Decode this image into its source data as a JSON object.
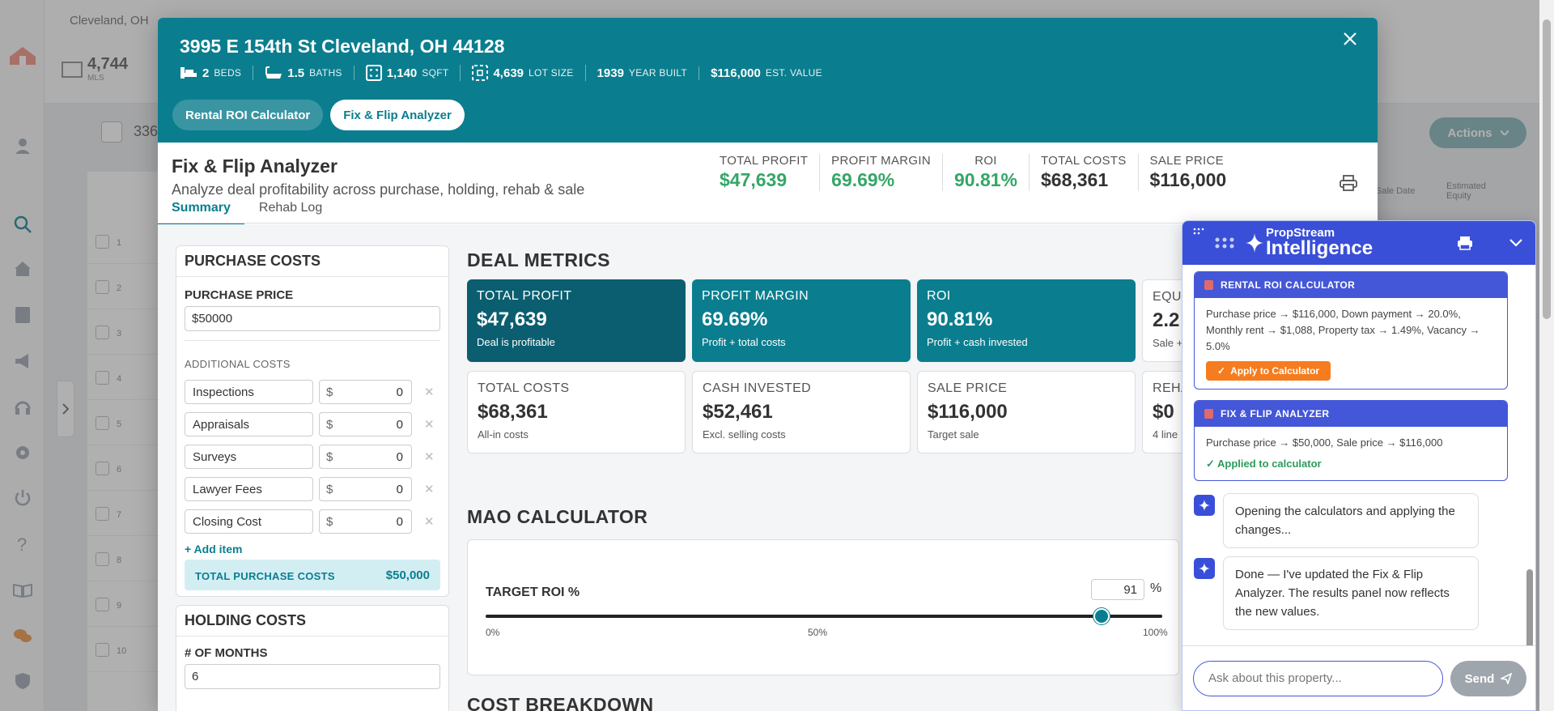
{
  "background": {
    "location": "Cleveland, OH",
    "mls_count": "4,744",
    "mls_label": "MLS",
    "results_count": "336",
    "actions_label": "Actions",
    "columns": [
      "Sale Date",
      "Estimated Equity"
    ],
    "row_numbers": [
      "1",
      "2",
      "3",
      "4",
      "5",
      "6",
      "7",
      "8",
      "9",
      "10"
    ]
  },
  "property": {
    "address": "3995 E 154th St Cleveland, OH 44128",
    "specs": [
      {
        "icon": "bed-icon",
        "value": "2",
        "unit": "BEDS"
      },
      {
        "icon": "bath-icon",
        "value": "1.5",
        "unit": "BATHS"
      },
      {
        "icon": "sqft-icon",
        "value": "1,140",
        "unit": "SQFT"
      },
      {
        "icon": "lot-icon",
        "value": "4,639",
        "unit": "LOT SIZE"
      },
      {
        "icon": "",
        "value": "1939",
        "unit": "YEAR BUILT"
      },
      {
        "icon": "",
        "value": "$116,000",
        "unit": "EST. VALUE"
      }
    ]
  },
  "calc_tabs": [
    "Rental ROI Calculator",
    "Fix & Flip Analyzer"
  ],
  "analyzer": {
    "title": "Fix & Flip Analyzer",
    "subtitle": "Analyze deal profitability across purchase, holding, rehab & sale",
    "kpis": [
      {
        "label": "TOTAL PROFIT",
        "value": "$47,639",
        "color": "#35a667"
      },
      {
        "label": "PROFIT MARGIN",
        "value": "69.69%",
        "color": "#35a667"
      },
      {
        "label": "ROI",
        "value": "90.81%",
        "color": "#35a667"
      },
      {
        "label": "TOTAL COSTS",
        "value": "$68,361",
        "color": "#333333"
      },
      {
        "label": "SALE PRICE",
        "value": "$116,000",
        "color": "#333333"
      }
    ],
    "subtabs": [
      "Summary",
      "Rehab Log"
    ]
  },
  "purchase": {
    "header": "PURCHASE COSTS",
    "price_label": "PURCHASE PRICE",
    "price_value": "$50000",
    "additional_label": "ADDITIONAL COSTS",
    "items": [
      {
        "name": "Inspections",
        "value": "0"
      },
      {
        "name": "Appraisals",
        "value": "0"
      },
      {
        "name": "Surveys",
        "value": "0"
      },
      {
        "name": "Lawyer Fees",
        "value": "0"
      },
      {
        "name": "Closing Cost",
        "value": "0"
      }
    ],
    "currency": "$",
    "add_item": "Add item",
    "total_label": "TOTAL PURCHASE COSTS",
    "total_value": "$50,000"
  },
  "holding": {
    "header": "HOLDING COSTS",
    "months_label": "# OF MONTHS",
    "months_value": "6"
  },
  "deal_metrics": {
    "title": "DEAL METRICS",
    "cards": [
      {
        "label": "TOTAL PROFIT",
        "value": "$47,639",
        "sub": "Deal is profitable",
        "style": "dark"
      },
      {
        "label": "PROFIT MARGIN",
        "value": "69.69%",
        "sub": "Profit + total costs",
        "style": "teal"
      },
      {
        "label": "ROI",
        "value": "90.81%",
        "sub": "Profit + cash invested",
        "style": "teal"
      },
      {
        "label": "EQUI",
        "value": "2.2",
        "sub": "Sale +",
        "style": "white"
      },
      {
        "label": "TOTAL COSTS",
        "value": "$68,361",
        "sub": "All-in costs",
        "style": "white"
      },
      {
        "label": "CASH INVESTED",
        "value": "$52,461",
        "sub": "Excl. selling costs",
        "style": "white"
      },
      {
        "label": "SALE PRICE",
        "value": "$116,000",
        "sub": "Target sale",
        "style": "white"
      },
      {
        "label": "REHA",
        "value": "$0",
        "sub": "4 line",
        "style": "white"
      }
    ]
  },
  "mao": {
    "title": "MAO CALCULATOR",
    "target_label": "TARGET ROI %",
    "target_value": "91",
    "pct": "%",
    "slider_fraction": 0.91,
    "ticks": [
      "0%",
      "50%",
      "100%"
    ]
  },
  "cost_breakdown": {
    "title": "COST BREAKDOWN"
  },
  "ai": {
    "brand_top": "PropStream",
    "brand_bottom": "Intelligence",
    "tool1": {
      "title": "RENTAL ROI CALCULATOR",
      "text": "Purchase price → $116,000, Down payment → 20.0%, Monthly rent → $1,088, Property tax → 1.49%, Vacancy → 5.0%",
      "button": "Apply to Calculator"
    },
    "tool2": {
      "title": "FIX & FLIP ANALYZER",
      "text": "Purchase price → $50,000, Sale price → $116,000",
      "status": "Applied to calculator"
    },
    "messages": [
      "Opening the calculators and applying the changes...",
      "Done — I've updated the Fix & Flip Analyzer. The results panel now reflects the new values."
    ],
    "input_placeholder": "Ask about this property...",
    "send_label": "Send"
  }
}
